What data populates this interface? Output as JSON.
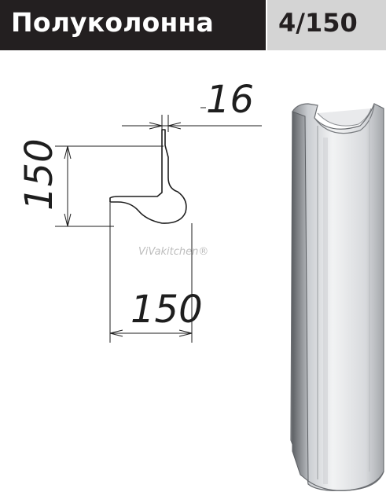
{
  "header": {
    "title": "Полуколонна",
    "code": "4/150"
  },
  "drawing": {
    "dim_top": "16",
    "dim_height": "150",
    "dim_width": "150",
    "watermark": "ViVakitchen®"
  },
  "colors": {
    "title_bar": "#231f20",
    "code_bar": "#d4d4d4",
    "title_text": "#ffffff",
    "line": "#1e1e1e"
  }
}
